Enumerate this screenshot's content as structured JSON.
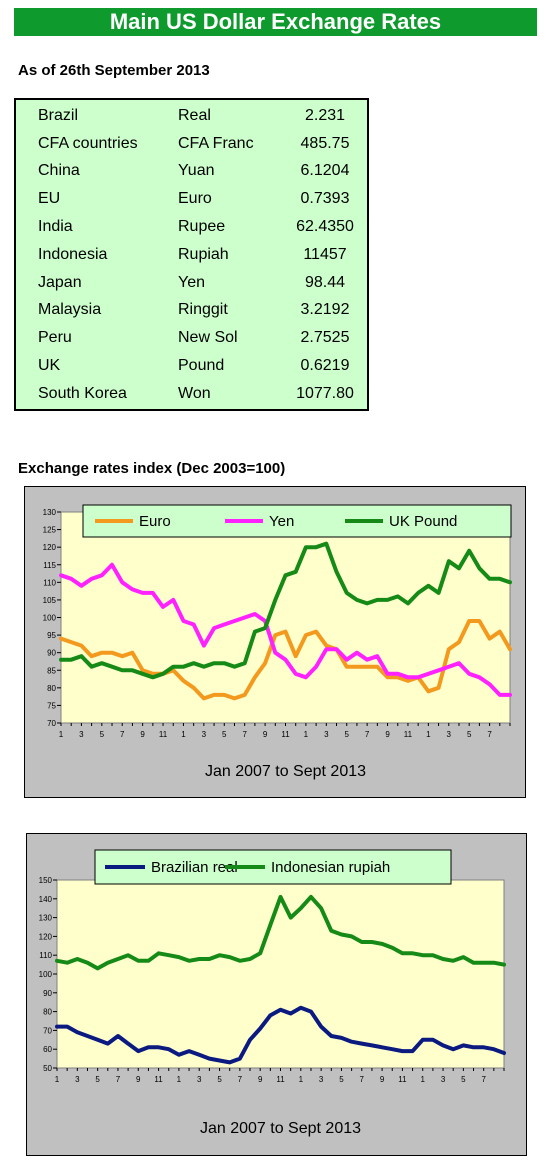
{
  "title": "Main US Dollar Exchange Rates",
  "as_of": "As of 26th September 2013",
  "rates": [
    {
      "country": "Brazil",
      "currency": "Real",
      "value": "2.231"
    },
    {
      "country": "CFA countries",
      "currency": "CFA Franc",
      "value": "485.75"
    },
    {
      "country": "China",
      "currency": "Yuan",
      "value": "6.1204"
    },
    {
      "country": "EU",
      "currency": "Euro",
      "value": "0.7393"
    },
    {
      "country": "India",
      "currency": "Rupee",
      "value": "62.4350"
    },
    {
      "country": "Indonesia",
      "currency": "Rupiah",
      "value": "11457"
    },
    {
      "country": "Japan",
      "currency": "Yen",
      "value": "98.44"
    },
    {
      "country": "Malaysia",
      "currency": "Ringgit",
      "value": "3.2192"
    },
    {
      "country": "Peru",
      "currency": "New Sol",
      "value": "2.7525"
    },
    {
      "country": "UK",
      "currency": "Pound",
      "value": "0.6219"
    },
    {
      "country": "South Korea",
      "currency": "Won",
      "value": "1077.80"
    }
  ],
  "index_heading": "Exchange rates index (Dec 2003=100)",
  "colors": {
    "banner": "#0f9a2e",
    "table_bg": "#ccffcc",
    "plot_bg": "#ffffcc",
    "frame": "#c0c0c0"
  },
  "chart_data": [
    {
      "type": "line",
      "title": "",
      "xlabel": "Jan 2007 to Sept 2013",
      "ylabel": "",
      "ylim": [
        70,
        130
      ],
      "yticks": [
        70,
        75,
        80,
        85,
        90,
        95,
        100,
        105,
        110,
        115,
        120,
        125,
        130
      ],
      "xtick_labels": [
        "1",
        "3",
        "5",
        "7",
        "9",
        "11",
        "1",
        "3",
        "5",
        "7",
        "9",
        "11",
        "1",
        "3",
        "5",
        "7",
        "9",
        "11",
        "1",
        "3",
        "5",
        "7"
      ],
      "legend": "top",
      "grid": false,
      "series": [
        {
          "name": "Euro",
          "color": "#f39a1e",
          "values": [
            94,
            93,
            92,
            89,
            90,
            90,
            89,
            90,
            85,
            84,
            84,
            85,
            82,
            80,
            77,
            78,
            78,
            77,
            78,
            83,
            87,
            95,
            96,
            89,
            95,
            96,
            92,
            91,
            86,
            86,
            86,
            86,
            83,
            83,
            82,
            83,
            79,
            80,
            91,
            93,
            99,
            99,
            94,
            96,
            91
          ]
        },
        {
          "name": "Yen",
          "color": "#ff22ff",
          "values": [
            112,
            111,
            109,
            111,
            112,
            115,
            110,
            108,
            107,
            107,
            103,
            105,
            99,
            98,
            92,
            97,
            98,
            99,
            100,
            101,
            99,
            90,
            88,
            84,
            83,
            86,
            91,
            91,
            88,
            90,
            88,
            89,
            84,
            84,
            83,
            83,
            84,
            85,
            86,
            87,
            84,
            83,
            81,
            78,
            78
          ]
        },
        {
          "name": "UK Pound",
          "color": "#168a16",
          "values": [
            88,
            88,
            89,
            86,
            87,
            86,
            85,
            85,
            84,
            83,
            84,
            86,
            86,
            87,
            86,
            87,
            87,
            86,
            87,
            96,
            97,
            105,
            112,
            113,
            120,
            120,
            121,
            113,
            107,
            105,
            104,
            105,
            105,
            106,
            104,
            107,
            109,
            107,
            116,
            114,
            119,
            114,
            111,
            111,
            110
          ]
        }
      ]
    },
    {
      "type": "line",
      "title": "",
      "xlabel": "Jan 2007 to Sept 2013",
      "ylabel": "",
      "ylim": [
        50,
        150
      ],
      "yticks": [
        50,
        60,
        70,
        80,
        90,
        100,
        110,
        120,
        130,
        140,
        150
      ],
      "xtick_labels": [
        "1",
        "3",
        "5",
        "7",
        "9",
        "11",
        "1",
        "3",
        "5",
        "7",
        "9",
        "11",
        "1",
        "3",
        "5",
        "7",
        "9",
        "11",
        "1",
        "3",
        "5",
        "7"
      ],
      "legend": "top",
      "grid": false,
      "series": [
        {
          "name": "Brazilian real",
          "color": "#0a1a80",
          "values": [
            72,
            72,
            69,
            67,
            65,
            63,
            67,
            63,
            59,
            61,
            61,
            60,
            57,
            59,
            57,
            55,
            54,
            53,
            55,
            65,
            71,
            78,
            81,
            79,
            82,
            80,
            72,
            67,
            66,
            64,
            63,
            62,
            61,
            60,
            59,
            59,
            65,
            65,
            62,
            60,
            62,
            61,
            61,
            60,
            58
          ]
        },
        {
          "name": "Indonesian rupiah",
          "color": "#168a16",
          "values": [
            107,
            106,
            108,
            106,
            103,
            106,
            108,
            110,
            107,
            107,
            111,
            110,
            109,
            107,
            108,
            108,
            110,
            109,
            107,
            108,
            111,
            126,
            141,
            130,
            135,
            141,
            135,
            123,
            121,
            120,
            117,
            117,
            116,
            114,
            111,
            111,
            110,
            110,
            108,
            107,
            109,
            106,
            106,
            106,
            105
          ]
        }
      ]
    }
  ]
}
